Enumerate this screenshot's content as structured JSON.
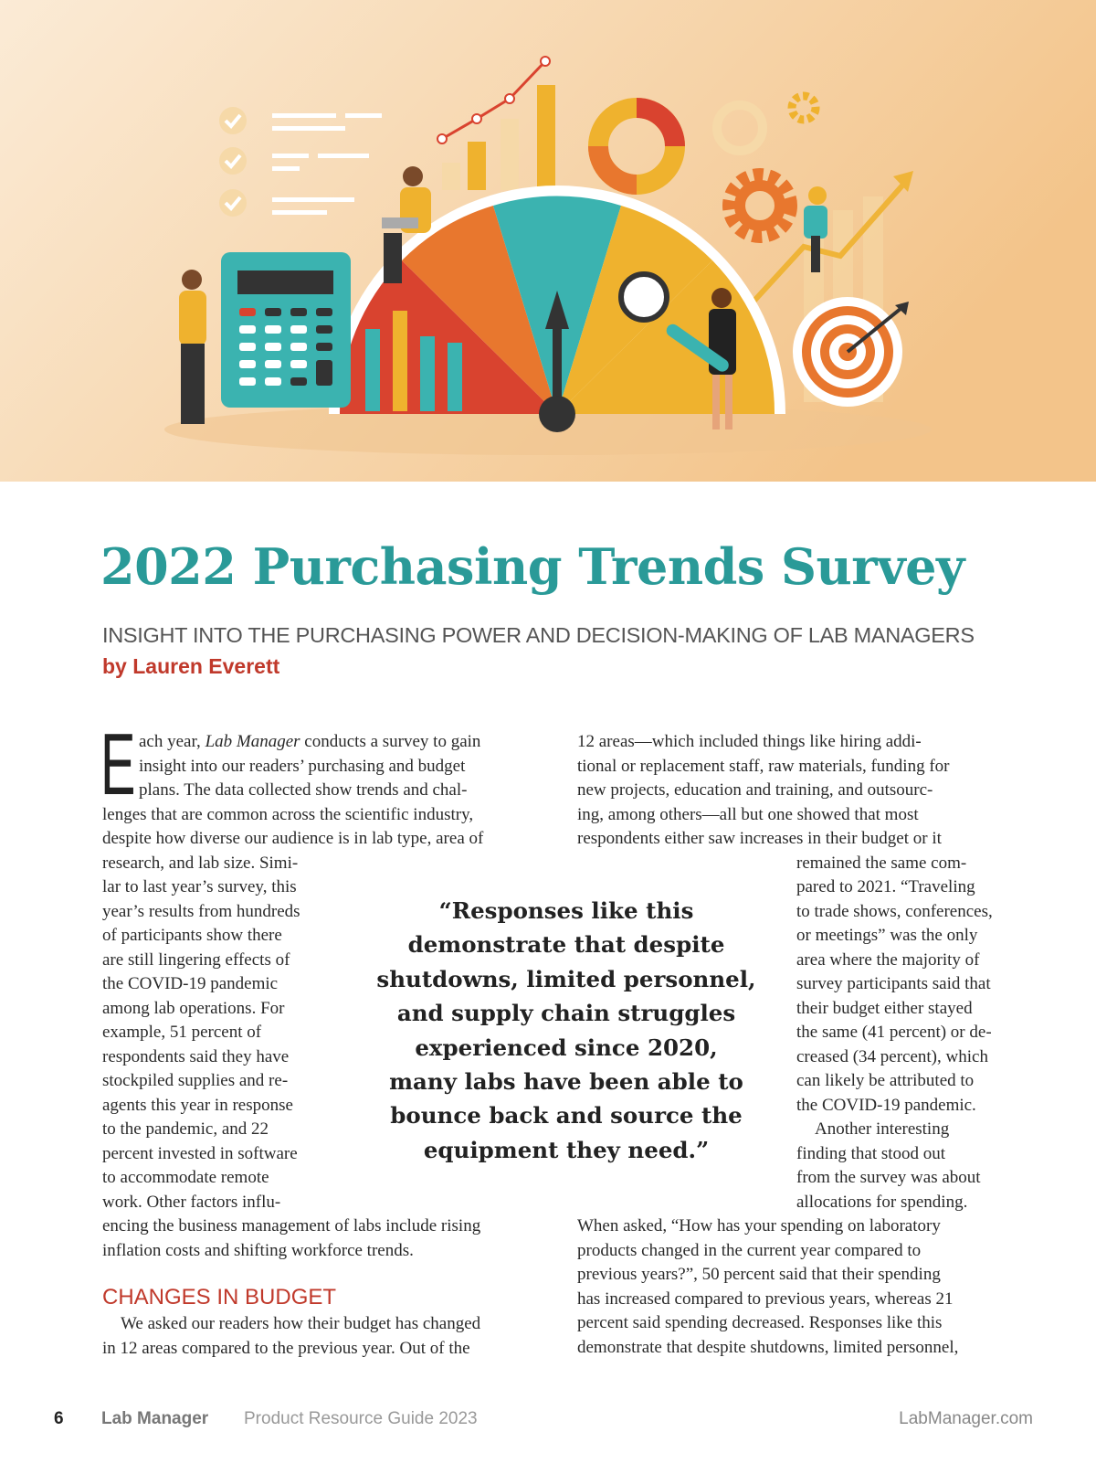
{
  "hero": {
    "description_icons": [
      "calculator-icon",
      "gauge-icon",
      "bar-chart-icon",
      "donut-chart-icon",
      "gear-icon",
      "magnifier-icon",
      "target-icon",
      "checklist-icon",
      "trend-arrow-icon"
    ],
    "colors": {
      "bg_light": "#fbe9d2",
      "bg_dark": "#f3c893",
      "teal": "#3bb3b0",
      "orange": "#e8772e",
      "red": "#d9432f",
      "yellow": "#efb22e"
    }
  },
  "article": {
    "title": "2022 Purchasing Trends Survey",
    "subtitle": "INSIGHT INTO THE PURCHASING POWER AND DECISION-MAKING OF LAB MANAGERS",
    "byline": "by Lauren Everett",
    "drop_cap": "E",
    "left_column": {
      "first_line_pre": "ach year, ",
      "first_line_italic": "Lab Manager",
      "first_line_post": " conducts a survey to gain",
      "lines": [
        "insight into our readers’ purchasing and budget",
        "plans. The data collected show trends and chal-",
        "lenges that are common across the scientific industry,",
        "despite how diverse our audience is in lab type, area of",
        "research, and lab size. Simi-",
        "lar to last year’s survey, this",
        "year’s results from hundreds",
        "of participants show there",
        "are still lingering effects of",
        "the COVID-19 pandemic",
        "among lab operations. For",
        "example, 51 percent of",
        "respondents said they have",
        "stockpiled supplies and re-",
        "agents this year in response",
        "to the pandemic, and 22",
        "percent invested in software",
        "to accommodate remote",
        "work. Other factors influ-",
        "encing the business management of labs include rising",
        "inflation costs and shifting workforce trends."
      ],
      "section_heading": "CHANGES IN BUDGET",
      "section_lines": [
        "We asked our readers how their budget has changed",
        "in 12 areas compared to the previous year. Out of the"
      ]
    },
    "right_column": {
      "lines": [
        "12 areas—which included things like hiring addi-",
        "tional or replacement staff, raw materials, funding for",
        "new projects, education and training, and outsourc-",
        "ing, among others—all but one showed that most",
        "respondents either saw increases in their budget or it",
        "remained the same com-",
        "pared to 2021. “Traveling",
        "to trade shows, conferences,",
        "or meetings” was the only",
        "area where the majority of",
        "survey participants said that",
        "their budget either stayed",
        "the same (41 percent) or de-",
        "creased (34 percent), which",
        "can likely be attributed to",
        "the COVID-19 pandemic.",
        "Another interesting",
        "finding that stood out",
        "from the survey was about",
        "allocations for spending.",
        "When asked, “How has your spending on laboratory",
        "products changed in the current year compared to",
        "previous years?”, 50 percent said that their spending",
        "has increased compared to previous years, whereas 21",
        "percent said spending decreased. Responses like this",
        "demonstrate that despite shutdowns, limited personnel,"
      ]
    },
    "pull_quote": [
      "“Responses like this",
      "demonstrate that despite",
      "shutdowns, limited personnel,",
      "and supply chain struggles",
      "experienced since 2020,",
      "many labs have been able to",
      "bounce back and source the",
      "equipment they need.”"
    ]
  },
  "footer": {
    "page_number": "6",
    "publication": "Lab Manager",
    "issue": "Product Resource Guide 2023",
    "website": "LabManager.com"
  }
}
